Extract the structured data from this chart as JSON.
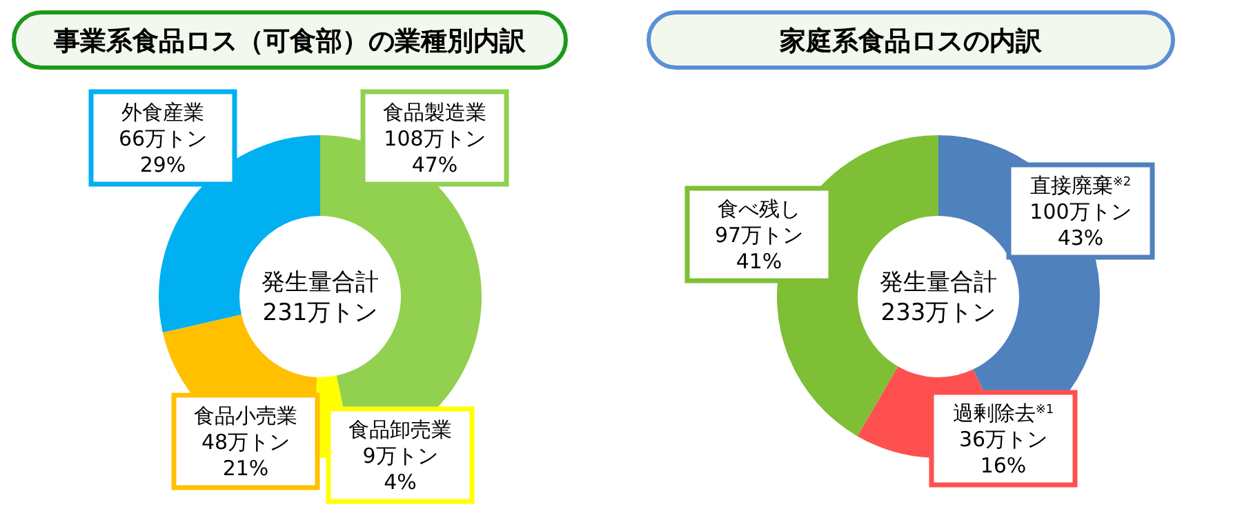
{
  "chart_data": [
    {
      "type": "donut",
      "title": "事業系食品ロス（可食部）の業種別内訳",
      "categories": [
        "食品製造業",
        "食品卸売業",
        "食品小売業",
        "外食産業"
      ],
      "values": [
        108,
        9,
        48,
        66
      ],
      "colors": [
        "#92d050",
        "#ffff00",
        "#ffc000",
        "#00b0f0"
      ],
      "value_labels": [
        "108万トン\n47%",
        "9万トン\n4%",
        "48万トン\n21%",
        "66万トン\n29%"
      ],
      "annotations": [
        "発生量合計\n231万トン"
      ]
    },
    {
      "type": "donut",
      "title": "家庭系食品ロスの内訳",
      "categories": [
        "直接廃棄$^{※2}$",
        "過剰除去$^{※1}$",
        "食べ残し"
      ],
      "values": [
        100,
        36,
        97
      ],
      "colors": [
        "#4f81bd",
        "#ff5050",
        "#7ebf35"
      ],
      "value_labels": [
        "100万トン\n43%",
        "36万トン\n16%",
        "97万トン\n41%"
      ],
      "annotations": [
        "発生量合計\n233万トン"
      ]
    }
  ]
}
